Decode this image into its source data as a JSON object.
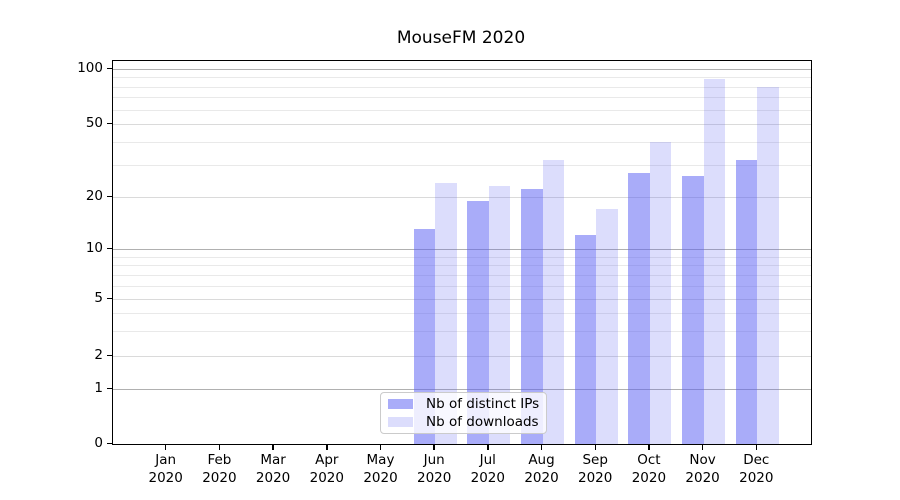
{
  "chart_data": {
    "type": "bar",
    "title": "MouseFM 2020",
    "year": "2020",
    "months": [
      "Jan",
      "Feb",
      "Mar",
      "Apr",
      "May",
      "Jun",
      "Jul",
      "Aug",
      "Sep",
      "Oct",
      "Nov",
      "Dec"
    ],
    "categories": [
      "Jan 2020",
      "Feb 2020",
      "Mar 2020",
      "Apr 2020",
      "May 2020",
      "Jun 2020",
      "Jul 2020",
      "Aug 2020",
      "Sep 2020",
      "Oct 2020",
      "Nov 2020",
      "Dec 2020"
    ],
    "series": [
      {
        "name": "Nb of distinct IPs",
        "color": "rgba(90,96,243,0.52)",
        "values": [
          0,
          0,
          0,
          0,
          0,
          13,
          19,
          22,
          12,
          27,
          26,
          32
        ]
      },
      {
        "name": "Nb of downloads",
        "color": "rgba(90,96,243,0.21)",
        "values": [
          0,
          0,
          0,
          0,
          0,
          24,
          23,
          32,
          17,
          40,
          88,
          80
        ]
      }
    ],
    "xlabel": "",
    "ylabel": "",
    "yscale": "symlog (linear 0-1, logarithmic above 1)",
    "ylim": [
      0,
      110
    ],
    "yticks": [
      0,
      1,
      2,
      5,
      10,
      20,
      50,
      100
    ],
    "ytick_display": [
      "100",
      "50",
      "20",
      "10",
      "5",
      "2",
      "1",
      "0"
    ],
    "ytick_display_values": [
      100,
      50,
      20,
      10,
      5,
      2,
      1,
      0
    ],
    "minor_yticks": [
      3,
      4,
      6,
      7,
      8,
      9,
      30,
      40,
      60,
      70,
      80,
      90
    ],
    "decade_ticks": [
      1,
      10,
      100
    ],
    "grid": "horizontal",
    "legend_position": "lower center",
    "bar_color_dark_hex": "#aaadf9",
    "bar_color_light_hex": "#dde0fc"
  }
}
